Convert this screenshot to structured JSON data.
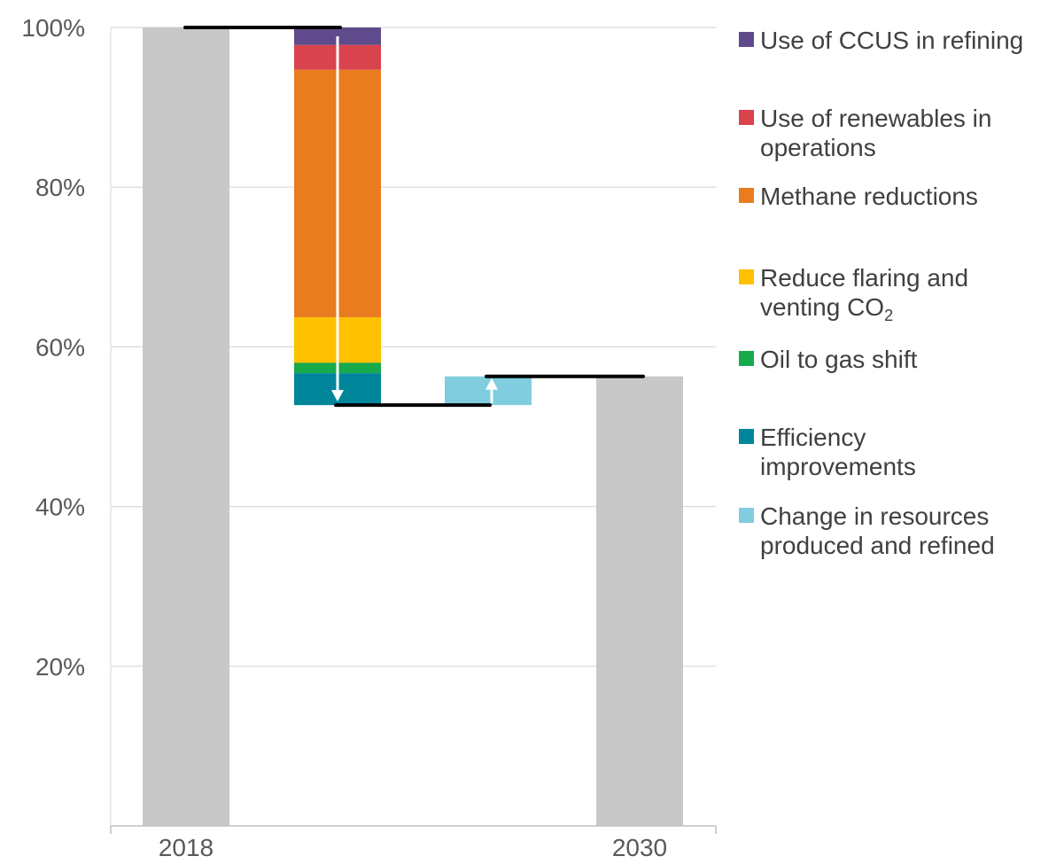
{
  "chart_data": {
    "type": "bar",
    "subtype": "waterfall",
    "title": "",
    "xlabel": "",
    "ylabel": "",
    "ylim": [
      0,
      100
    ],
    "yticks": [
      {
        "value": 20,
        "label": "20%"
      },
      {
        "value": 40,
        "label": "40%"
      },
      {
        "value": 60,
        "label": "60%"
      },
      {
        "value": 80,
        "label": "80%"
      },
      {
        "value": 100,
        "label": "100%"
      }
    ],
    "grid": true,
    "categories": [
      "2018",
      "",
      "",
      "2030"
    ],
    "totals": [
      {
        "category": "2018",
        "value": 100
      },
      {
        "category": "2030",
        "value": 56.3
      }
    ],
    "reductions": [
      {
        "name": "Use of CCUS in refining",
        "value": 2.2,
        "color": "#5f4b8b"
      },
      {
        "name": "Use of renewables in operations",
        "value": 3.1,
        "color": "#d9434d"
      },
      {
        "name": "Methane reductions",
        "value": 31.0,
        "color": "#e97c1f"
      },
      {
        "name": "Reduce flaring and venting CO₂",
        "value": 5.7,
        "color": "#ffc000"
      },
      {
        "name": "Oil to gas shift",
        "value": 1.3,
        "color": "#18a94b"
      },
      {
        "name": "Efficiency improvements",
        "value": 4.0,
        "color": "#00869b"
      }
    ],
    "increases": [
      {
        "name": "Change in resources produced and refined",
        "value": 3.6,
        "color": "#80cde0"
      }
    ],
    "reduction_bottom": 52.7,
    "total_color": "#c8c8c8",
    "legend_position": "right",
    "legend": [
      {
        "label_lines": [
          "Use of CCUS in refining"
        ],
        "color": "#5f4b8b"
      },
      {
        "label_lines": [
          "Use of renewables in",
          "operations"
        ],
        "color": "#d9434d"
      },
      {
        "label_lines": [
          "Methane reductions"
        ],
        "color": "#e97c1f"
      },
      {
        "label_lines": [
          "Reduce flaring and",
          "venting CO₂"
        ],
        "color": "#ffc000"
      },
      {
        "label_lines": [
          "Oil to gas shift"
        ],
        "color": "#18a94b"
      },
      {
        "label_lines": [
          "Efficiency",
          "improvements"
        ],
        "color": "#00869b"
      },
      {
        "label_lines": [
          "Change in resources",
          "produced and refined"
        ],
        "color": "#80cde0"
      }
    ]
  }
}
